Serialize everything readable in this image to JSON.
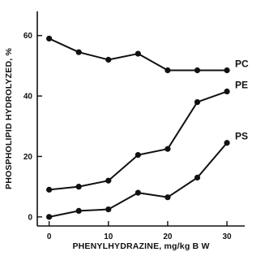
{
  "chart_data": {
    "type": "line",
    "xlabel": "PHENYLHYDRAZINE, mg/kg B W",
    "ylabel": "PHOSPHOLIPID HYDROLYZED, %",
    "xlim": [
      -2,
      33
    ],
    "ylim": [
      -3,
      68
    ],
    "xticks": [
      0,
      10,
      20,
      30
    ],
    "yticks": [
      0,
      20,
      40,
      60
    ],
    "grid": false,
    "x": [
      0,
      5,
      10,
      15,
      20,
      25,
      30
    ],
    "series": [
      {
        "name": "PC",
        "values": [
          59,
          54.5,
          52,
          54,
          48.5,
          48.5,
          48.5
        ]
      },
      {
        "name": "PE",
        "values": [
          9,
          10,
          12,
          20.5,
          22.5,
          38,
          41.5
        ]
      },
      {
        "name": "PS",
        "values": [
          0,
          2,
          2.5,
          8,
          6.5,
          13,
          24.5
        ]
      }
    ],
    "colors": {
      "ink": "#111111",
      "background": "#ffffff"
    }
  }
}
